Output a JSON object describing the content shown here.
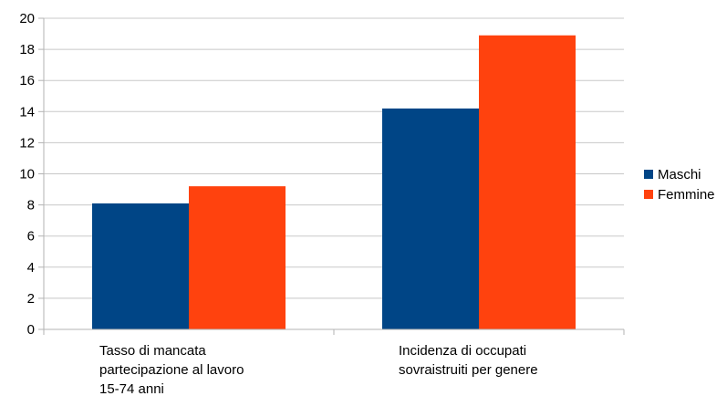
{
  "chart_data": {
    "type": "bar",
    "categories": [
      [
        "Tasso di mancata",
        "partecipazione al lavoro",
        "15-74 anni"
      ],
      [
        "Incidenza di occupati",
        "sovraistruiti per genere"
      ]
    ],
    "series": [
      {
        "name": "Maschi",
        "color": "#004586",
        "values": [
          8.1,
          14.2
        ]
      },
      {
        "name": "Femmine",
        "color": "#ff420e",
        "values": [
          9.2,
          18.9
        ]
      }
    ],
    "ylim": [
      0,
      20
    ],
    "yticks": [
      0,
      2,
      4,
      6,
      8,
      10,
      12,
      14,
      16,
      18,
      20
    ],
    "grid": true,
    "legend_position": "right"
  }
}
